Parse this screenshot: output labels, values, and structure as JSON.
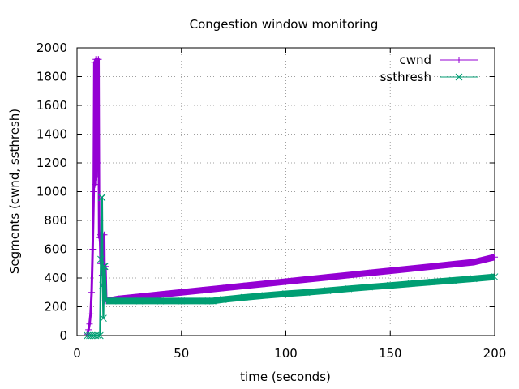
{
  "chart_data": {
    "type": "line",
    "title": "Congestion window monitoring",
    "xlabel": "time (seconds)",
    "ylabel": "Segments (cwnd, ssthresh)",
    "xlim": [
      0,
      200
    ],
    "ylim": [
      0,
      2000
    ],
    "xticks": [
      0,
      50,
      100,
      150,
      200
    ],
    "yticks": [
      0,
      200,
      400,
      600,
      800,
      1000,
      1200,
      1400,
      1600,
      1800,
      2000
    ],
    "grid": true,
    "legend_position": "top-right",
    "series": [
      {
        "name": "cwnd",
        "color": "#9400d3",
        "marker": "plus",
        "x": [
          5,
          5.5,
          6,
          6.5,
          7,
          7.5,
          8,
          8.3,
          8.6,
          9,
          9.3,
          9.6,
          10,
          10.3,
          10.6,
          11,
          11.3,
          11.6,
          12,
          12.3,
          12.6,
          13,
          13.3,
          13.6,
          14,
          20,
          30,
          40,
          50,
          60,
          70,
          80,
          90,
          100,
          110,
          120,
          130,
          140,
          150,
          160,
          170,
          180,
          190,
          200
        ],
        "y": [
          10,
          40,
          80,
          150,
          300,
          600,
          1000,
          1900,
          1050,
          1920,
          1100,
          1920,
          1200,
          1920,
          680,
          700,
          500,
          700,
          420,
          700,
          350,
          700,
          240,
          480,
          240,
          255,
          270,
          285,
          300,
          315,
          330,
          345,
          360,
          375,
          390,
          405,
          420,
          435,
          450,
          465,
          480,
          495,
          510,
          545
        ]
      },
      {
        "name": "ssthresh",
        "color": "#009e73",
        "marker": "cross",
        "x": [
          5,
          6,
          7,
          8,
          9,
          10,
          11,
          11.4,
          11.8,
          12,
          12.3,
          12.6,
          13,
          13.3,
          14,
          20,
          30,
          40,
          50,
          60,
          65,
          70,
          80,
          90,
          100,
          110,
          120,
          130,
          140,
          150,
          160,
          170,
          180,
          190,
          200
        ],
        "y": [
          0,
          0,
          0,
          0,
          0,
          0,
          0,
          530,
          960,
          960,
          350,
          120,
          480,
          480,
          240,
          240,
          240,
          240,
          240,
          240,
          240,
          250,
          265,
          278,
          290,
          300,
          312,
          325,
          337,
          348,
          360,
          372,
          383,
          395,
          408
        ]
      }
    ]
  }
}
